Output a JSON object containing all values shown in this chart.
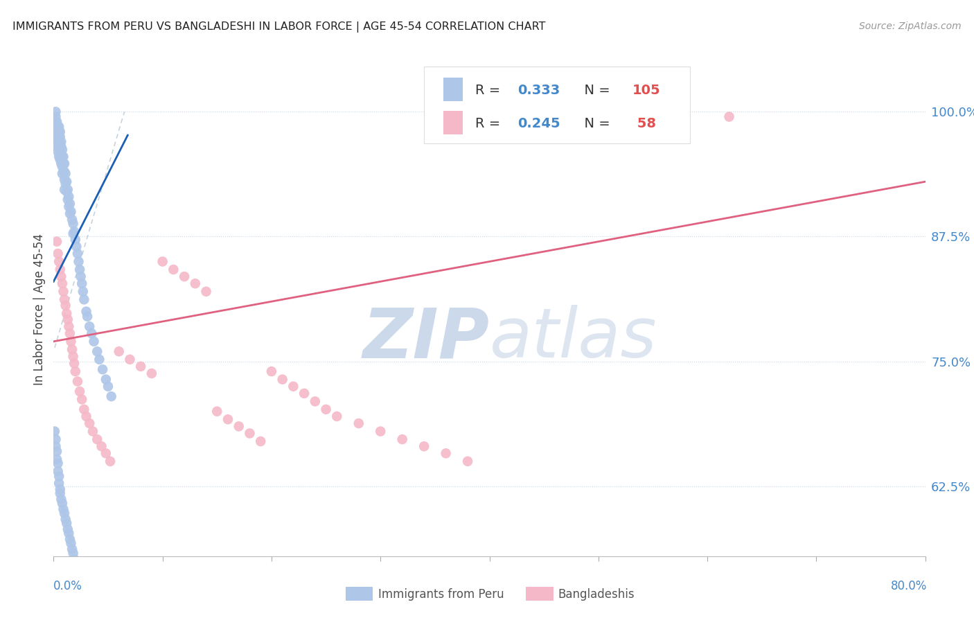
{
  "title": "IMMIGRANTS FROM PERU VS BANGLADESHI IN LABOR FORCE | AGE 45-54 CORRELATION CHART",
  "source": "Source: ZipAtlas.com",
  "ylabel": "In Labor Force | Age 45-54",
  "ytick_labels": [
    "62.5%",
    "75.0%",
    "87.5%",
    "100.0%"
  ],
  "ytick_values": [
    0.625,
    0.75,
    0.875,
    1.0
  ],
  "xlim": [
    0.0,
    0.8
  ],
  "ylim": [
    0.555,
    1.05
  ],
  "legend_peru_r": "0.333",
  "legend_peru_n": "105",
  "legend_bangla_r": "0.245",
  "legend_bangla_n": "58",
  "peru_color": "#aec6e8",
  "bangla_color": "#f4b8c8",
  "trendline_peru_color": "#1a5fb4",
  "trendline_bangla_color": "#e06080",
  "diagonal_color": "#b8c8d8",
  "watermark_zip": "ZIP",
  "watermark_atlas": "atlas",
  "watermark_color": "#ccd8e8",
  "background_color": "#ffffff",
  "grid_color": "#c8d8e8",
  "blue_label_color": "#4488cc",
  "red_label_color": "#e05050"
}
